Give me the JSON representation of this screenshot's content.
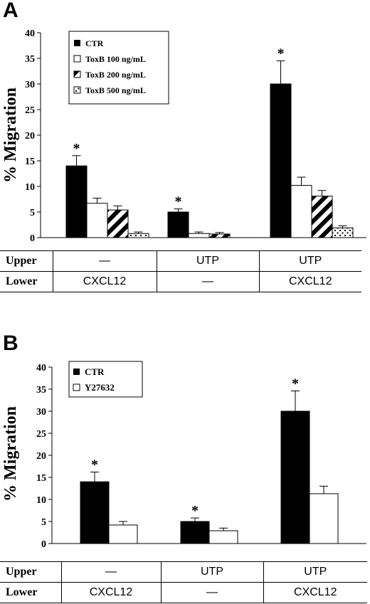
{
  "chart_data": [
    {
      "panel": "A",
      "type": "bar",
      "ylabel": "% Migration",
      "ylim": [
        0,
        40
      ],
      "yticks": [
        0,
        5,
        10,
        15,
        20,
        25,
        30,
        35,
        40
      ],
      "grid": false,
      "legend_position": "top-left",
      "groups": 3,
      "series": [
        {
          "name": "CTR",
          "pattern": "solid",
          "values": [
            14,
            5,
            30
          ],
          "errors": [
            2,
            0.6,
            4.5
          ],
          "significant": [
            true,
            true,
            true
          ]
        },
        {
          "name": "ToxB 100 ng/mL",
          "pattern": "white",
          "values": [
            6.7,
            0.8,
            10.2
          ],
          "errors": [
            1,
            0.3,
            1.6
          ],
          "significant": [
            false,
            false,
            false
          ]
        },
        {
          "name": "ToxB 200 ng/mL",
          "pattern": "diagonal",
          "values": [
            5.4,
            0.7,
            8.1
          ],
          "errors": [
            0.8,
            0.3,
            1.1
          ],
          "significant": [
            false,
            false,
            false
          ]
        },
        {
          "name": "ToxB 500 ng/mL",
          "pattern": "dotted",
          "values": [
            0.8,
            0,
            1.9
          ],
          "errors": [
            0.3,
            0,
            0.4
          ],
          "significant": [
            false,
            false,
            false
          ]
        }
      ],
      "significance_marker": "*",
      "conditions": {
        "upper_label": "Upper",
        "lower_label": "Lower",
        "upper": [
          "—",
          "UTP",
          "UTP"
        ],
        "lower": [
          "CXCL12",
          "—",
          "CXCL12"
        ]
      }
    },
    {
      "panel": "B",
      "type": "bar",
      "ylabel": "% Migration",
      "ylim": [
        0,
        40
      ],
      "yticks": [
        0,
        5,
        10,
        15,
        20,
        25,
        30,
        35,
        40
      ],
      "grid": false,
      "legend_position": "top-left",
      "groups": 3,
      "series": [
        {
          "name": "CTR",
          "pattern": "solid",
          "values": [
            14,
            5,
            30
          ],
          "errors": [
            2.2,
            0.8,
            4.6
          ],
          "significant": [
            true,
            true,
            true
          ]
        },
        {
          "name": "Y27632",
          "pattern": "white",
          "values": [
            4.2,
            2.9,
            11.3
          ],
          "errors": [
            0.8,
            0.6,
            1.7
          ],
          "significant": [
            false,
            false,
            false
          ]
        }
      ],
      "significance_marker": "*",
      "conditions": {
        "upper_label": "Upper",
        "lower_label": "Lower",
        "upper": [
          "—",
          "UTP",
          "UTP"
        ],
        "lower": [
          "CXCL12",
          "—",
          "CXCL12"
        ]
      }
    }
  ],
  "colors": {
    "bar_solid": "#000000",
    "bar_white": "#ffffff",
    "axis": "#000000"
  }
}
